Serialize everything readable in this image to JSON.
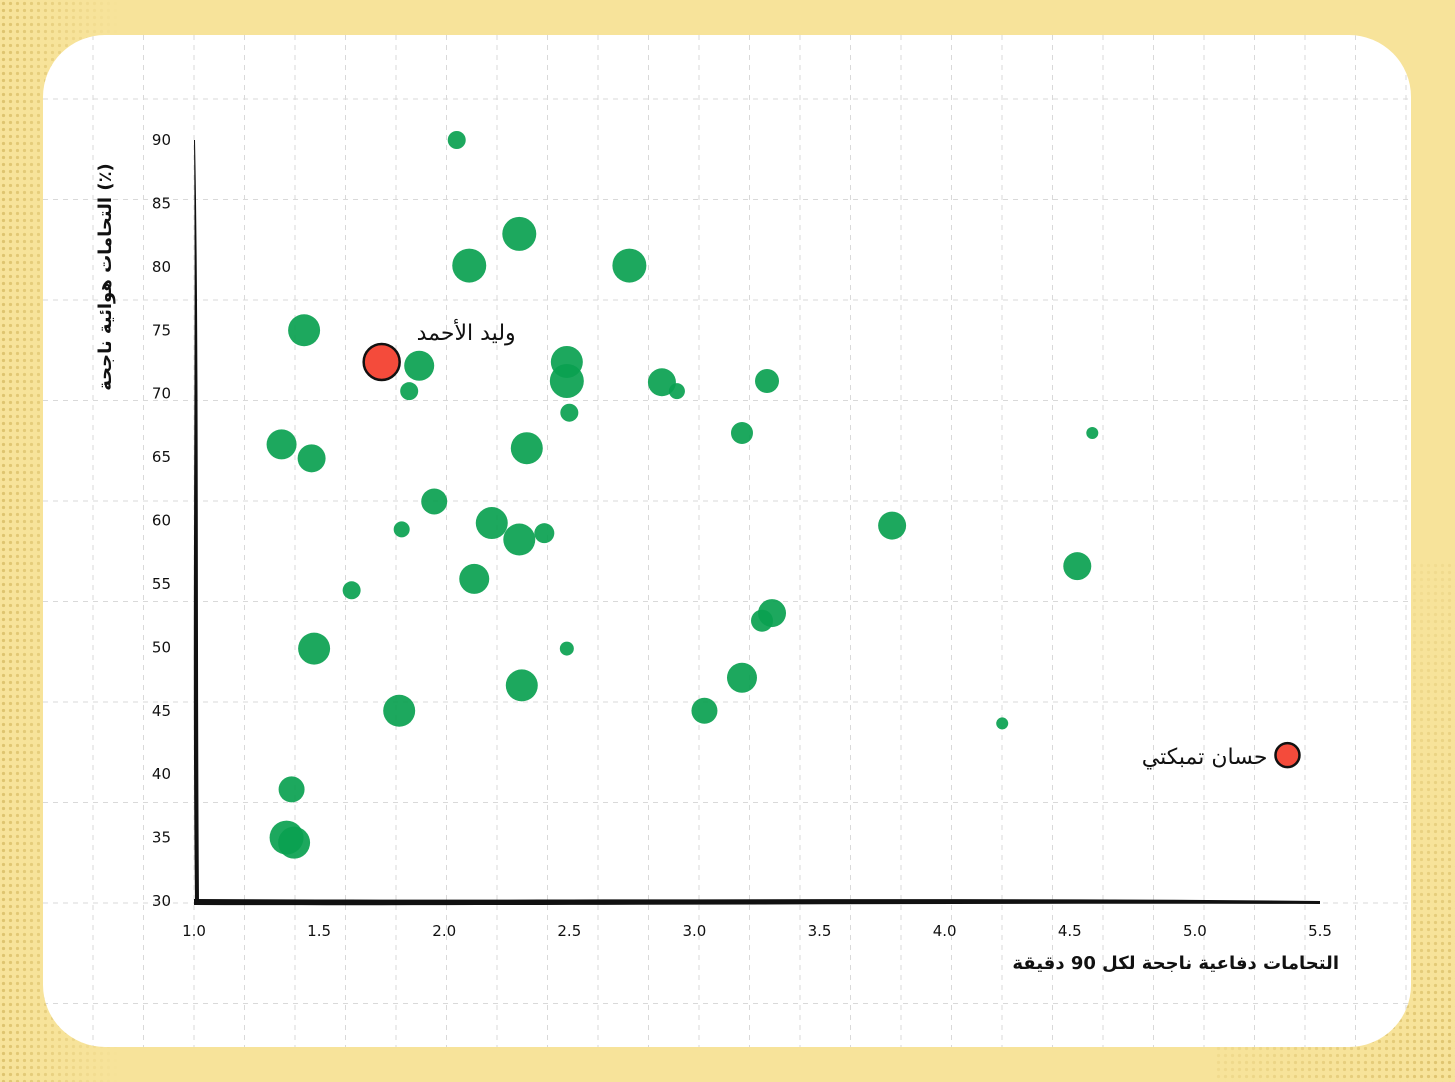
{
  "chart_data": {
    "type": "scatter",
    "xlabel": "التحامات دفاعية ناجحة لكل 90 دقيقة",
    "ylabel": "التحامات هوائية ناجحة (٪)",
    "xlim": [
      1.0,
      5.5
    ],
    "ylim": [
      30,
      90
    ],
    "xticks": [
      "1.0",
      "1.5",
      "2.0",
      "2.5",
      "3.0",
      "3.5",
      "4.0",
      "4.5",
      "5.0",
      "5.5"
    ],
    "yticks": [
      "30",
      "35",
      "40",
      "45",
      "50",
      "55",
      "60",
      "65",
      "70",
      "75",
      "80",
      "85",
      "90"
    ],
    "grid": true,
    "colors": {
      "players": "#0aa150",
      "highlight": "#f44b3b",
      "background": "#f7e39a",
      "card": "#ffffff"
    },
    "series": [
      {
        "points": [
          {
            "x": 2.05,
            "y": 90.0,
            "s": 9
          },
          {
            "x": 2.3,
            "y": 82.6,
            "s": 17
          },
          {
            "x": 2.1,
            "y": 80.1,
            "s": 17
          },
          {
            "x": 2.74,
            "y": 80.1,
            "s": 17
          },
          {
            "x": 1.44,
            "y": 75.0,
            "s": 16
          },
          {
            "x": 1.9,
            "y": 72.2,
            "s": 15
          },
          {
            "x": 2.49,
            "y": 72.5,
            "s": 16
          },
          {
            "x": 2.49,
            "y": 71.0,
            "s": 17
          },
          {
            "x": 2.87,
            "y": 70.9,
            "s": 14
          },
          {
            "x": 3.29,
            "y": 71.0,
            "s": 12
          },
          {
            "x": 1.86,
            "y": 70.2,
            "s": 9
          },
          {
            "x": 2.93,
            "y": 70.2,
            "s": 8
          },
          {
            "x": 2.5,
            "y": 68.5,
            "s": 9
          },
          {
            "x": 3.19,
            "y": 66.9,
            "s": 11
          },
          {
            "x": 4.59,
            "y": 66.9,
            "s": 6
          },
          {
            "x": 1.35,
            "y": 66.0,
            "s": 15
          },
          {
            "x": 2.33,
            "y": 65.7,
            "s": 16
          },
          {
            "x": 1.47,
            "y": 64.9,
            "s": 14
          },
          {
            "x": 1.96,
            "y": 61.5,
            "s": 13
          },
          {
            "x": 2.19,
            "y": 59.8,
            "s": 16
          },
          {
            "x": 1.83,
            "y": 59.3,
            "s": 8
          },
          {
            "x": 2.4,
            "y": 59.0,
            "s": 10
          },
          {
            "x": 2.3,
            "y": 58.5,
            "s": 16
          },
          {
            "x": 3.79,
            "y": 59.6,
            "s": 14
          },
          {
            "x": 4.53,
            "y": 56.4,
            "s": 14
          },
          {
            "x": 2.12,
            "y": 55.4,
            "s": 15
          },
          {
            "x": 1.63,
            "y": 54.5,
            "s": 9
          },
          {
            "x": 3.31,
            "y": 52.7,
            "s": 14
          },
          {
            "x": 3.27,
            "y": 52.1,
            "s": 11
          },
          {
            "x": 1.48,
            "y": 49.9,
            "s": 16
          },
          {
            "x": 2.49,
            "y": 49.9,
            "s": 7
          },
          {
            "x": 3.19,
            "y": 47.6,
            "s": 15
          },
          {
            "x": 2.31,
            "y": 47.0,
            "s": 16
          },
          {
            "x": 1.82,
            "y": 45.0,
            "s": 16
          },
          {
            "x": 3.04,
            "y": 45.0,
            "s": 13
          },
          {
            "x": 4.23,
            "y": 44.0,
            "s": 6
          },
          {
            "x": 1.39,
            "y": 38.8,
            "s": 13
          },
          {
            "x": 1.37,
            "y": 35.0,
            "s": 17
          },
          {
            "x": 1.4,
            "y": 34.6,
            "s": 16
          }
        ]
      },
      {
        "highlight": true,
        "points": [
          {
            "x": 1.75,
            "y": 72.5,
            "s": 18,
            "label": "وليد الأحمد"
          },
          {
            "x": 5.37,
            "y": 41.5,
            "s": 12,
            "label": "حسان تمبكتي"
          }
        ]
      }
    ]
  }
}
